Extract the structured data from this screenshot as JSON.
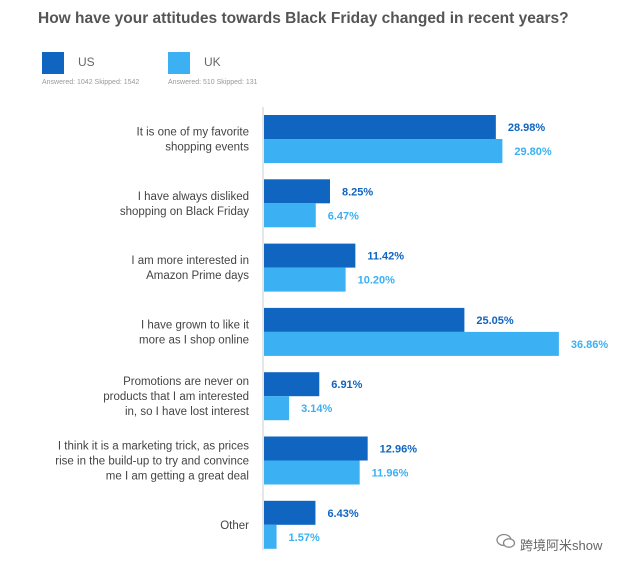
{
  "chart_data": {
    "type": "bar",
    "orientation": "horizontal",
    "title": "How have your attitudes towards Black Friday changed in recent years?",
    "categories": [
      [
        "It is one of my favorite",
        "shopping events"
      ],
      [
        "I have always disliked",
        "shopping on Black Friday"
      ],
      [
        "I am more interested in",
        "Amazon Prime days"
      ],
      [
        "I have grown to like it",
        "more as I shop online"
      ],
      [
        "Promotions are never on",
        "products that I am interested",
        "in, so I have lost interest"
      ],
      [
        "I think it is a marketing trick, as prices",
        "rise in the build-up to try and convince",
        "me I am getting a great deal"
      ],
      [
        "Other"
      ]
    ],
    "series": [
      {
        "name": "US",
        "meta": "Answered: 1042  Skipped: 1542",
        "color": "#0f65c0",
        "values": [
          28.98,
          8.25,
          11.42,
          25.05,
          6.91,
          12.96,
          6.43
        ],
        "labels": [
          "28.98%",
          "8.25%",
          "11.42%",
          "25.05%",
          "6.91%",
          "12.96%",
          "6.43%"
        ]
      },
      {
        "name": "UK",
        "meta": "Answered: 510  Skipped: 131",
        "color": "#3bb0f2",
        "values": [
          29.8,
          6.47,
          10.2,
          36.86,
          3.14,
          11.96,
          1.57
        ],
        "labels": [
          "29.80%",
          "6.47%",
          "10.20%",
          "36.86%",
          "3.14%",
          "11.96%",
          "1.57%"
        ]
      }
    ],
    "xlim": [
      0,
      40
    ],
    "grid": false,
    "legend": "top-left"
  },
  "watermark": "跨境阿米show"
}
